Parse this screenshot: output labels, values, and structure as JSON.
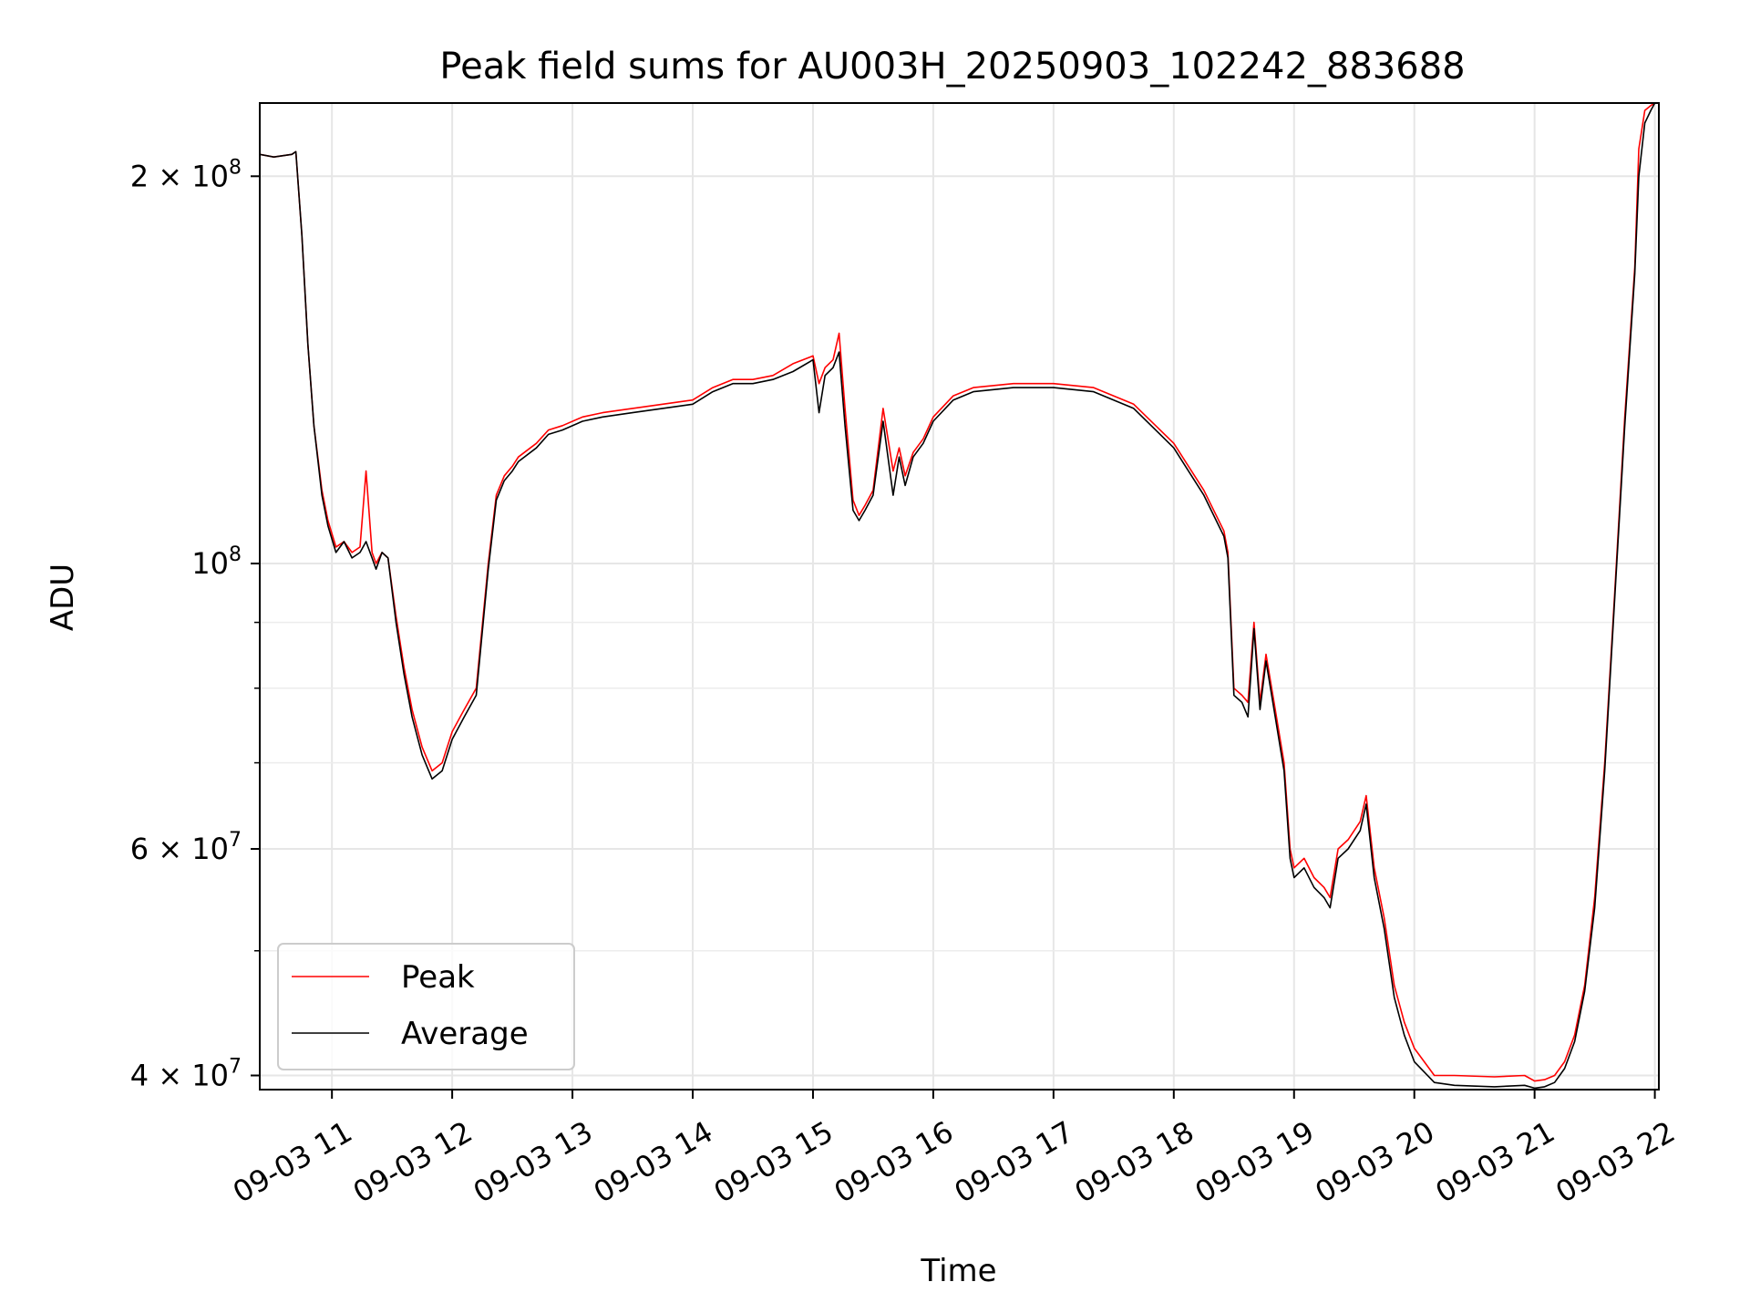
{
  "chart_data": {
    "type": "line",
    "title": "Peak field sums for AU003H_20250903_102242_883688",
    "xlabel": "Time",
    "ylabel": "ADU",
    "yscale": "log",
    "xlim": [
      "2025-09-03 10:24",
      "2025-09-03 22:02"
    ],
    "ylim": [
      39000000,
      228000000
    ],
    "grid": true,
    "legend_position": "lower-left",
    "x_ticks": [
      {
        "value": "2025-09-03 11:00",
        "label": "09-03 11"
      },
      {
        "value": "2025-09-03 12:00",
        "label": "09-03 12"
      },
      {
        "value": "2025-09-03 13:00",
        "label": "09-03 13"
      },
      {
        "value": "2025-09-03 14:00",
        "label": "09-03 14"
      },
      {
        "value": "2025-09-03 15:00",
        "label": "09-03 15"
      },
      {
        "value": "2025-09-03 16:00",
        "label": "09-03 16"
      },
      {
        "value": "2025-09-03 17:00",
        "label": "09-03 17"
      },
      {
        "value": "2025-09-03 18:00",
        "label": "09-03 18"
      },
      {
        "value": "2025-09-03 19:00",
        "label": "09-03 19"
      },
      {
        "value": "2025-09-03 20:00",
        "label": "09-03 20"
      },
      {
        "value": "2025-09-03 21:00",
        "label": "09-03 21"
      },
      {
        "value": "2025-09-03 22:00",
        "label": "09-03 22"
      }
    ],
    "y_ticks": [
      {
        "value": 40000000,
        "label": "4 × 10",
        "exp": "7"
      },
      {
        "value": 60000000,
        "label": "6 × 10",
        "exp": "7"
      },
      {
        "value": 100000000,
        "label": "10",
        "exp": "8"
      },
      {
        "value": 200000000,
        "label": "2 × 10",
        "exp": "8"
      }
    ],
    "y_minor_ticks": [
      50000000,
      70000000,
      80000000,
      90000000
    ],
    "x": [
      "2025-09-03 10:24",
      "2025-09-03 10:31",
      "2025-09-03 10:40",
      "2025-09-03 10:42",
      "2025-09-03 10:45",
      "2025-09-03 10:48",
      "2025-09-03 10:51",
      "2025-09-03 10:55",
      "2025-09-03 10:58",
      "2025-09-03 11:02",
      "2025-09-03 11:06",
      "2025-09-03 11:10",
      "2025-09-03 11:14",
      "2025-09-03 11:17",
      "2025-09-03 11:20",
      "2025-09-03 11:22",
      "2025-09-03 11:25",
      "2025-09-03 11:28",
      "2025-09-03 11:32",
      "2025-09-03 11:36",
      "2025-09-03 11:40",
      "2025-09-03 11:45",
      "2025-09-03 11:50",
      "2025-09-03 11:55",
      "2025-09-03 12:00",
      "2025-09-03 12:06",
      "2025-09-03 12:12",
      "2025-09-03 12:18",
      "2025-09-03 12:22",
      "2025-09-03 12:26",
      "2025-09-03 12:30",
      "2025-09-03 12:33",
      "2025-09-03 12:36",
      "2025-09-03 12:42",
      "2025-09-03 12:48",
      "2025-09-03 12:55",
      "2025-09-03 13:05",
      "2025-09-03 13:15",
      "2025-09-03 13:30",
      "2025-09-03 13:45",
      "2025-09-03 14:00",
      "2025-09-03 14:10",
      "2025-09-03 14:20",
      "2025-09-03 14:30",
      "2025-09-03 14:40",
      "2025-09-03 14:50",
      "2025-09-03 15:00",
      "2025-09-03 15:03",
      "2025-09-03 15:06",
      "2025-09-03 15:10",
      "2025-09-03 15:13",
      "2025-09-03 15:16",
      "2025-09-03 15:20",
      "2025-09-03 15:23",
      "2025-09-03 15:26",
      "2025-09-03 15:30",
      "2025-09-03 15:35",
      "2025-09-03 15:40",
      "2025-09-03 15:43",
      "2025-09-03 15:46",
      "2025-09-03 15:50",
      "2025-09-03 15:55",
      "2025-09-03 16:00",
      "2025-09-03 16:10",
      "2025-09-03 16:20",
      "2025-09-03 16:40",
      "2025-09-03 17:00",
      "2025-09-03 17:20",
      "2025-09-03 17:40",
      "2025-09-03 18:00",
      "2025-09-03 18:15",
      "2025-09-03 18:25",
      "2025-09-03 18:27",
      "2025-09-03 18:30",
      "2025-09-03 18:34",
      "2025-09-03 18:37",
      "2025-09-03 18:40",
      "2025-09-03 18:43",
      "2025-09-03 18:46",
      "2025-09-03 18:50",
      "2025-09-03 18:55",
      "2025-09-03 18:58",
      "2025-09-03 19:00",
      "2025-09-03 19:05",
      "2025-09-03 19:10",
      "2025-09-03 19:15",
      "2025-09-03 19:18",
      "2025-09-03 19:22",
      "2025-09-03 19:27",
      "2025-09-03 19:33",
      "2025-09-03 19:36",
      "2025-09-03 19:40",
      "2025-09-03 19:45",
      "2025-09-03 19:50",
      "2025-09-03 19:55",
      "2025-09-03 20:00",
      "2025-09-03 20:10",
      "2025-09-03 20:20",
      "2025-09-03 20:40",
      "2025-09-03 20:55",
      "2025-09-03 21:00",
      "2025-09-03 21:05",
      "2025-09-03 21:10",
      "2025-09-03 21:15",
      "2025-09-03 21:20",
      "2025-09-03 21:25",
      "2025-09-03 21:30",
      "2025-09-03 21:35",
      "2025-09-03 21:40",
      "2025-09-03 21:45",
      "2025-09-03 21:50",
      "2025-09-03 21:52",
      "2025-09-03 21:55",
      "2025-09-03 21:58",
      "2025-09-03 22:00",
      "2025-09-03 22:02"
    ],
    "series": [
      {
        "name": "Peak",
        "color": "#ff0000",
        "values": [
          208000000,
          207000000,
          208000000,
          209000000,
          180000000,
          148000000,
          128000000,
          114000000,
          108000000,
          103000000,
          104000000,
          102000000,
          103000000,
          118000000,
          102000000,
          100000000,
          102000000,
          101000000,
          91000000,
          83000000,
          77000000,
          72000000,
          69000000,
          70000000,
          74000000,
          77000000,
          80000000,
          100000000,
          113000000,
          117000000,
          119000000,
          121000000,
          122000000,
          124000000,
          127000000,
          128000000,
          130000000,
          131000000,
          132000000,
          133000000,
          134000000,
          137000000,
          139000000,
          139000000,
          140000000,
          143000000,
          145000000,
          138000000,
          142000000,
          144000000,
          151000000,
          132000000,
          112000000,
          109000000,
          111000000,
          114000000,
          132000000,
          118000000,
          123000000,
          117000000,
          122000000,
          125000000,
          130000000,
          135000000,
          137000000,
          138000000,
          138000000,
          137000000,
          133000000,
          124000000,
          114000000,
          106000000,
          102000000,
          80000000,
          79000000,
          78000000,
          90000000,
          78000000,
          85000000,
          78000000,
          70000000,
          60000000,
          58000000,
          59000000,
          57000000,
          56000000,
          55000000,
          60000000,
          61000000,
          63000000,
          66000000,
          58000000,
          53000000,
          47000000,
          44000000,
          42000000,
          40000000,
          40000000,
          39900000,
          40000000,
          39600000,
          39700000,
          40000000,
          41000000,
          43000000,
          47000000,
          55000000,
          70000000,
          95000000,
          130000000,
          170000000,
          210000000,
          225000000,
          227000000,
          228000000,
          228000000
        ]
      },
      {
        "name": "Average",
        "color": "#000000",
        "values": [
          208000000,
          207000000,
          208000000,
          209000000,
          180000000,
          148000000,
          128000000,
          113000000,
          107000000,
          102000000,
          104000000,
          101000000,
          102000000,
          104000000,
          101000000,
          99000000,
          102000000,
          101000000,
          90000000,
          82000000,
          76000000,
          71000000,
          68000000,
          69000000,
          73000000,
          76000000,
          79000000,
          99000000,
          112000000,
          116000000,
          118000000,
          120000000,
          121000000,
          123000000,
          126000000,
          127000000,
          129000000,
          130000000,
          131000000,
          132000000,
          133000000,
          136000000,
          138000000,
          138000000,
          139000000,
          141000000,
          144000000,
          131000000,
          140000000,
          142000000,
          146000000,
          128000000,
          110000000,
          108000000,
          110000000,
          113000000,
          129000000,
          113000000,
          121000000,
          115000000,
          121000000,
          124000000,
          129000000,
          134000000,
          136000000,
          137000000,
          137000000,
          136000000,
          132000000,
          123000000,
          113000000,
          105000000,
          101000000,
          79000000,
          78000000,
          76000000,
          89000000,
          77000000,
          84000000,
          77000000,
          69000000,
          59000000,
          57000000,
          58000000,
          56000000,
          55000000,
          54000000,
          59000000,
          60000000,
          62000000,
          65000000,
          57000000,
          52000000,
          46000000,
          43000000,
          41000000,
          39500000,
          39300000,
          39200000,
          39300000,
          39100000,
          39200000,
          39500000,
          40500000,
          42500000,
          46500000,
          54000000,
          69000000,
          94000000,
          128000000,
          168000000,
          200000000,
          220000000,
          225000000,
          228000000,
          228000000
        ]
      }
    ]
  }
}
